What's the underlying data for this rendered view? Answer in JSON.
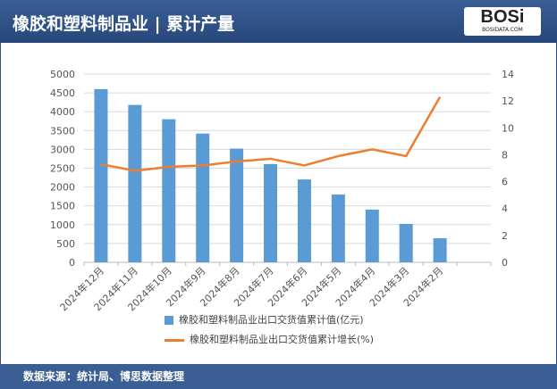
{
  "title": "橡胶和塑料制品业 | 累计产量",
  "logo": {
    "text": "BOSi",
    "sub": "BOSIDATA.COM"
  },
  "footer": "数据来源：统计局、博思数据整理",
  "colors": {
    "bar": "#5b9bd5",
    "line": "#ed7d31"
  },
  "chart_data": {
    "type": "bar+line",
    "categories": [
      "2024年12月",
      "2024年11月",
      "2024年10月",
      "2024年9月",
      "2024年8月",
      "2024年7月",
      "2024年6月",
      "2024年5月",
      "2024年4月",
      "2024年3月",
      "2024年2月"
    ],
    "series": [
      {
        "name": "橡胶和塑料制品业出口交货值累计值(亿元)",
        "type": "bar",
        "axis": "left",
        "values": [
          4600,
          4180,
          3800,
          3420,
          3020,
          2610,
          2200,
          1800,
          1400,
          1020,
          640
        ]
      },
      {
        "name": "橡胶和塑料制品业出口交货值累计增长(%)",
        "type": "line",
        "axis": "right",
        "values": [
          7.3,
          6.8,
          7.1,
          7.2,
          7.5,
          7.7,
          7.2,
          7.9,
          8.4,
          7.9,
          12.3
        ]
      }
    ],
    "left_axis": {
      "ylim": [
        0,
        5000
      ],
      "ticks": [
        0,
        500,
        1000,
        1500,
        2000,
        2500,
        3000,
        3500,
        4000,
        4500,
        5000
      ]
    },
    "right_axis": {
      "ylim": [
        0,
        14
      ],
      "ticks": [
        0,
        2,
        4,
        6,
        8,
        10,
        12,
        14
      ]
    },
    "grid": true,
    "legend": "bottom"
  }
}
